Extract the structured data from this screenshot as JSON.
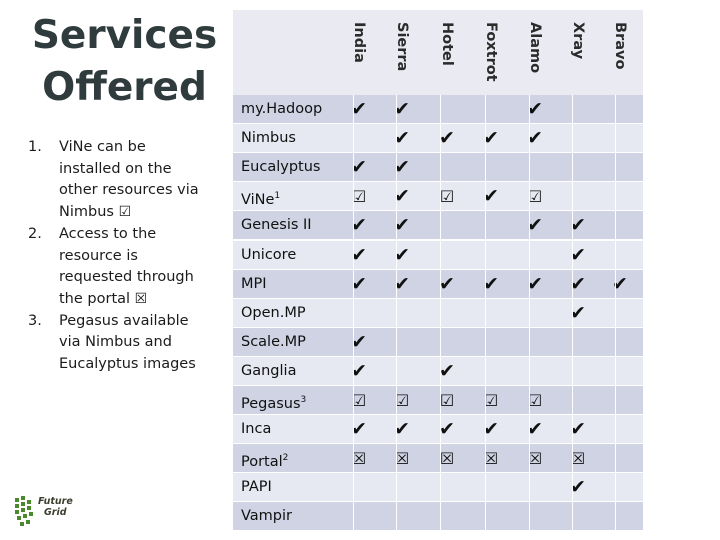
{
  "slide": {
    "title": "Services Offered",
    "notes": [
      {
        "num": "1.",
        "text": "ViNe can be installed on the other resources via Nimbus",
        "symbol": "☑"
      },
      {
        "num": "2.",
        "text": "Access to the resource is requested through the portal",
        "symbol": "☒"
      },
      {
        "num": "3.",
        "text": "Pegasus available via Nimbus and Eucalyptus images",
        "symbol": ""
      }
    ],
    "logo_text": [
      "Future",
      "Grid"
    ]
  },
  "matrix": {
    "columns": [
      "India",
      "Sierra",
      "Hotel",
      "Foxtrot",
      "Alamo",
      "Xray",
      "Bravo"
    ],
    "rows": [
      {
        "label": "my.Hadoop",
        "sup": "",
        "cells": [
          "✔",
          "✔",
          "",
          "",
          "✔",
          "",
          ""
        ]
      },
      {
        "label": "Nimbus",
        "sup": "",
        "cells": [
          "",
          "✔",
          "✔",
          "✔",
          "✔",
          "",
          ""
        ]
      },
      {
        "label": "Eucalyptus",
        "sup": "",
        "cells": [
          "✔",
          "✔",
          "",
          "",
          "",
          "",
          ""
        ]
      },
      {
        "label": "ViNe",
        "sup": "1",
        "cells": [
          "☑",
          "✔",
          "☑",
          "✔",
          "☑",
          "",
          ""
        ]
      },
      {
        "label": "Genesis II",
        "sup": "",
        "cells": [
          "✔",
          "✔",
          "",
          "",
          "✔",
          "✔",
          ""
        ]
      },
      {
        "label": "Unicore",
        "sup": "",
        "cells": [
          "✔",
          "✔",
          "",
          "",
          "",
          "✔",
          ""
        ]
      },
      {
        "label": "MPI",
        "sup": "",
        "cells": [
          "✔",
          "✔",
          "✔",
          "✔",
          "✔",
          "✔",
          "✔"
        ]
      },
      {
        "label": "Open.MP",
        "sup": "",
        "cells": [
          "",
          "",
          "",
          "",
          "",
          "✔",
          ""
        ]
      },
      {
        "label": "Scale.MP",
        "sup": "",
        "cells": [
          "✔",
          "",
          "",
          "",
          "",
          "",
          ""
        ]
      },
      {
        "label": "Ganglia",
        "sup": "",
        "cells": [
          "✔",
          "",
          "✔",
          "",
          "",
          "",
          ""
        ]
      },
      {
        "label": "Pegasus",
        "sup": "3",
        "cells": [
          "☑",
          "☑",
          "☑",
          "☑",
          "☑",
          "",
          ""
        ]
      },
      {
        "label": "Inca",
        "sup": "",
        "cells": [
          "✔",
          "✔",
          "✔",
          "✔",
          "✔",
          "✔",
          ""
        ]
      },
      {
        "label": "Portal",
        "sup": "2",
        "cells": [
          "☒",
          "☒",
          "☒",
          "☒",
          "☒",
          "☒",
          ""
        ]
      },
      {
        "label": "PAPI",
        "sup": "",
        "cells": [
          "",
          "",
          "",
          "",
          "",
          "✔",
          ""
        ]
      },
      {
        "label": "Vampir",
        "sup": "",
        "cells": [
          "",
          "",
          "",
          "",
          "",
          "",
          ""
        ]
      }
    ]
  },
  "colors": {
    "header_bg": "#e9eaf2",
    "row_dark": "#cfd3e4",
    "row_light": "#e7e9f2",
    "grid_line": "#ffffff"
  }
}
